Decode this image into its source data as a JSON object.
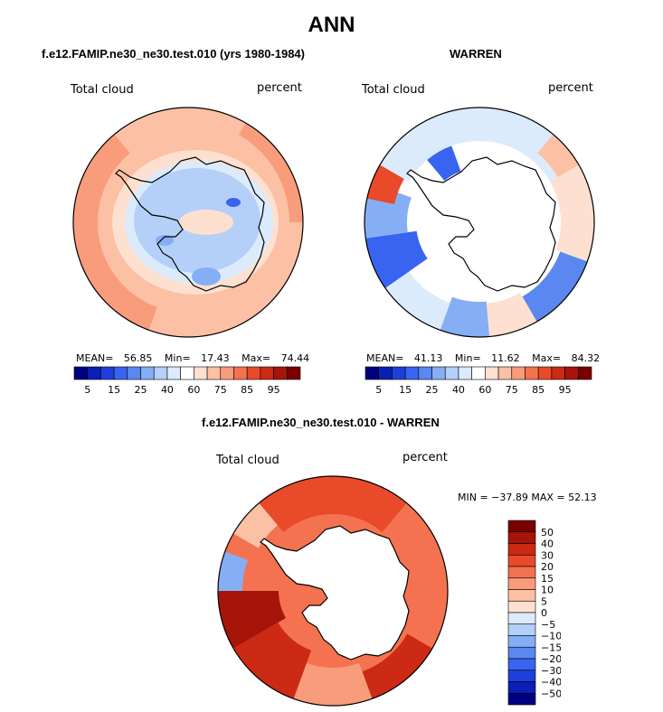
{
  "page": {
    "title": "ANN"
  },
  "colors": {
    "abs_scale": [
      "#000080",
      "#0a1fb5",
      "#1f3fdc",
      "#3864f0",
      "#5a88f0",
      "#86aef5",
      "#b4d0f8",
      "#dcebfc",
      "#ffffff",
      "#fde0d0",
      "#fcc0a4",
      "#f99c7c",
      "#f47250",
      "#e84a2a",
      "#cc2a14",
      "#a6140a",
      "#7a0000"
    ],
    "diff_scale": [
      "#000080",
      "#0a1fb5",
      "#1f3fdc",
      "#3864f0",
      "#5a88f0",
      "#86aef5",
      "#b4d0f8",
      "#dcebfc",
      "#fde0d0",
      "#fcc0a4",
      "#f99c7c",
      "#f47250",
      "#e84a2a",
      "#cc2a14",
      "#a6140a",
      "#7a0000"
    ]
  },
  "chart_data": [
    {
      "type": "heatmap",
      "projection": "south-polar-stereographic",
      "title": "f.e12.FAMIP.ne30_ne30.test.010 (yrs 1980-1984)",
      "variable": "Total cloud",
      "units": "percent",
      "stats": {
        "mean_label": "MEAN=",
        "mean": "56.85",
        "min_label": "Min=",
        "min": "17.43",
        "max_label": "Max=",
        "max": "74.44"
      },
      "colorbar_orientation": "horizontal",
      "colorbar_tick_labels": [
        "5",
        "15",
        "25",
        "40",
        "60",
        "75",
        "85",
        "95"
      ],
      "colorbar_levels": [
        5,
        10,
        15,
        20,
        25,
        30,
        40,
        50,
        60,
        65,
        70,
        75,
        80,
        85,
        90,
        95
      ]
    },
    {
      "type": "heatmap",
      "projection": "south-polar-stereographic",
      "title": "WARREN",
      "variable": "Total cloud",
      "units": "percent",
      "stats": {
        "mean_label": "MEAN=",
        "mean": "41.13",
        "min_label": "Min=",
        "min": "11.62",
        "max_label": "Max=",
        "max": "84.32"
      },
      "colorbar_orientation": "horizontal",
      "colorbar_tick_labels": [
        "5",
        "15",
        "25",
        "40",
        "60",
        "75",
        "85",
        "95"
      ],
      "colorbar_levels": [
        5,
        10,
        15,
        20,
        25,
        30,
        40,
        50,
        60,
        65,
        70,
        75,
        80,
        85,
        90,
        95
      ]
    },
    {
      "type": "heatmap",
      "projection": "south-polar-stereographic",
      "title": "f.e12.FAMIP.ne30_ne30.test.010 - WARREN",
      "variable": "Total cloud",
      "units": "percent",
      "stats_text": "MIN = −37.89 MAX =  52.13",
      "colorbar_orientation": "vertical",
      "colorbar_tick_labels": [
        "50",
        "40",
        "30",
        "20",
        "15",
        "10",
        "5",
        "0",
        "−5",
        "−10",
        "−15",
        "−20",
        "−30",
        "−40",
        "−50"
      ]
    }
  ]
}
